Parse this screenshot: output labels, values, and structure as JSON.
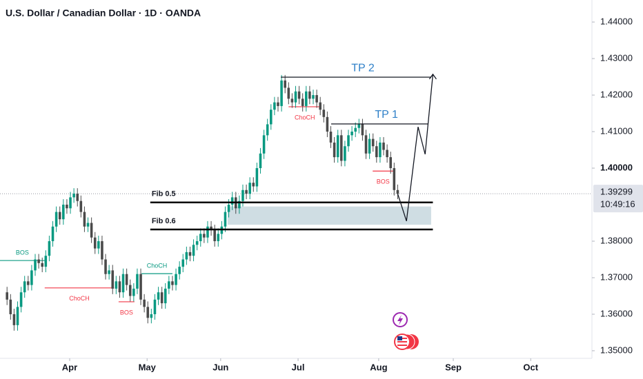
{
  "chart_data": {
    "type": "candlestick",
    "title": "U.S. Dollar / Canadian Dollar · 1D · OANDA",
    "up_color": "#089981",
    "down_color": "#4a4a4a",
    "xlim": [
      -2,
      166.2
    ],
    "ylim": [
      1.34792,
      1.44604
    ],
    "xticks": [
      {
        "value": 17.8,
        "label": "Apr"
      },
      {
        "value": 39.8,
        "label": "May"
      },
      {
        "value": 60.7,
        "label": "Jun"
      },
      {
        "value": 82.7,
        "label": "Jul"
      },
      {
        "value": 105.6,
        "label": "Aug"
      },
      {
        "value": 126.8,
        "label": "Sep"
      },
      {
        "value": 148.8,
        "label": "Oct"
      }
    ],
    "yticks": [
      {
        "value": 1.35,
        "label": "1.35000"
      },
      {
        "value": 1.36,
        "label": "1.36000"
      },
      {
        "value": 1.37,
        "label": "1.37000"
      },
      {
        "value": 1.38,
        "label": "1.38000"
      },
      {
        "value": 1.4,
        "label": "1.40000"
      },
      {
        "value": 1.41,
        "label": "1.41000"
      },
      {
        "value": 1.42,
        "label": "1.42000"
      },
      {
        "value": 1.43,
        "label": "1.43000"
      },
      {
        "value": 1.44,
        "label": "1.44000"
      }
    ],
    "last_price": 1.39299,
    "countdown": "10:49:16",
    "candles": [
      [
        1.366,
        1.3675,
        1.3625,
        1.364
      ],
      [
        1.364,
        1.3655,
        1.3585,
        1.36
      ],
      [
        1.36,
        1.3615,
        1.3555,
        1.357
      ],
      [
        1.357,
        1.3635,
        1.3555,
        1.362
      ],
      [
        1.362,
        1.3675,
        1.3605,
        1.366
      ],
      [
        1.366,
        1.3705,
        1.3645,
        1.369
      ],
      [
        1.369,
        1.3705,
        1.3665,
        1.368
      ],
      [
        1.368,
        1.3735,
        1.3665,
        1.372
      ],
      [
        1.372,
        1.3765,
        1.3705,
        1.375
      ],
      [
        1.375,
        1.3765,
        1.3725,
        1.374
      ],
      [
        1.374,
        1.3755,
        1.3715,
        1.373
      ],
      [
        1.373,
        1.3775,
        1.3715,
        1.376
      ],
      [
        1.376,
        1.3815,
        1.3745,
        1.38
      ],
      [
        1.38,
        1.3855,
        1.3785,
        1.384
      ],
      [
        1.384,
        1.3895,
        1.3825,
        1.388
      ],
      [
        1.388,
        1.3895,
        1.3845,
        1.386
      ],
      [
        1.386,
        1.3915,
        1.3845,
        1.39
      ],
      [
        1.39,
        1.3915,
        1.3875,
        1.389
      ],
      [
        1.389,
        1.3935,
        1.3875,
        1.392
      ],
      [
        1.392,
        1.3945,
        1.3905,
        1.393
      ],
      [
        1.393,
        1.3945,
        1.3895,
        1.391
      ],
      [
        1.391,
        1.3925,
        1.3865,
        1.388
      ],
      [
        1.388,
        1.3895,
        1.3825,
        1.384
      ],
      [
        1.384,
        1.3865,
        1.3825,
        1.385
      ],
      [
        1.385,
        1.3865,
        1.3795,
        1.381
      ],
      [
        1.381,
        1.3825,
        1.3765,
        1.378
      ],
      [
        1.378,
        1.3815,
        1.3765,
        1.38
      ],
      [
        1.38,
        1.3815,
        1.3735,
        1.375
      ],
      [
        1.375,
        1.3765,
        1.3695,
        1.371
      ],
      [
        1.371,
        1.3735,
        1.3695,
        1.372
      ],
      [
        1.372,
        1.3735,
        1.3655,
        1.367
      ],
      [
        1.367,
        1.3705,
        1.3655,
        1.369
      ],
      [
        1.369,
        1.3705,
        1.3645,
        1.366
      ],
      [
        1.366,
        1.3725,
        1.3645,
        1.371
      ],
      [
        1.371,
        1.3725,
        1.3665,
        1.368
      ],
      [
        1.368,
        1.3695,
        1.3635,
        1.365
      ],
      [
        1.365,
        1.3685,
        1.3635,
        1.367
      ],
      [
        1.367,
        1.3725,
        1.3655,
        1.371
      ],
      [
        1.371,
        1.3725,
        1.3625,
        1.364
      ],
      [
        1.364,
        1.3655,
        1.3605,
        1.362
      ],
      [
        1.362,
        1.3635,
        1.3575,
        1.359
      ],
      [
        1.359,
        1.3615,
        1.3575,
        1.36
      ],
      [
        1.36,
        1.3655,
        1.3585,
        1.364
      ],
      [
        1.364,
        1.3675,
        1.3625,
        1.366
      ],
      [
        1.366,
        1.3675,
        1.3615,
        1.363
      ],
      [
        1.363,
        1.3685,
        1.3615,
        1.367
      ],
      [
        1.367,
        1.3705,
        1.3655,
        1.369
      ],
      [
        1.369,
        1.3705,
        1.3665,
        1.368
      ],
      [
        1.368,
        1.3725,
        1.3665,
        1.371
      ],
      [
        1.371,
        1.3745,
        1.3695,
        1.373
      ],
      [
        1.373,
        1.3765,
        1.3715,
        1.375
      ],
      [
        1.375,
        1.3785,
        1.3735,
        1.377
      ],
      [
        1.377,
        1.3785,
        1.3745,
        1.376
      ],
      [
        1.376,
        1.3805,
        1.3745,
        1.379
      ],
      [
        1.379,
        1.3815,
        1.3775,
        1.38
      ],
      [
        1.38,
        1.3835,
        1.3785,
        1.382
      ],
      [
        1.382,
        1.3835,
        1.3795,
        1.381
      ],
      [
        1.381,
        1.3855,
        1.3795,
        1.384
      ],
      [
        1.384,
        1.3855,
        1.3815,
        1.383
      ],
      [
        1.383,
        1.3845,
        1.3785,
        1.38
      ],
      [
        1.38,
        1.3835,
        1.3785,
        1.382
      ],
      [
        1.382,
        1.3855,
        1.3805,
        1.384
      ],
      [
        1.384,
        1.3895,
        1.3825,
        1.388
      ],
      [
        1.388,
        1.3915,
        1.3865,
        1.39
      ],
      [
        1.39,
        1.3935,
        1.3885,
        1.392
      ],
      [
        1.392,
        1.3935,
        1.3875,
        1.389
      ],
      [
        1.389,
        1.3925,
        1.3875,
        1.391
      ],
      [
        1.391,
        1.3955,
        1.3895,
        1.394
      ],
      [
        1.394,
        1.3955,
        1.3915,
        1.393
      ],
      [
        1.393,
        1.3975,
        1.3915,
        1.396
      ],
      [
        1.396,
        1.3975,
        1.3935,
        1.395
      ],
      [
        1.395,
        1.4015,
        1.3935,
        1.4
      ],
      [
        1.4,
        1.4055,
        1.3985,
        1.404
      ],
      [
        1.404,
        1.4105,
        1.4025,
        1.409
      ],
      [
        1.409,
        1.4135,
        1.4075,
        1.412
      ],
      [
        1.412,
        1.4175,
        1.4105,
        1.416
      ],
      [
        1.416,
        1.4195,
        1.4145,
        1.418
      ],
      [
        1.418,
        1.4195,
        1.4155,
        1.417
      ],
      [
        1.417,
        1.4255,
        1.4155,
        1.424
      ],
      [
        1.424,
        1.4255,
        1.4205,
        1.422
      ],
      [
        1.422,
        1.4235,
        1.4175,
        1.419
      ],
      [
        1.419,
        1.4205,
        1.4165,
        1.418
      ],
      [
        1.418,
        1.4225,
        1.4165,
        1.421
      ],
      [
        1.421,
        1.4225,
        1.4175,
        1.419
      ],
      [
        1.419,
        1.4205,
        1.4155,
        1.417
      ],
      [
        1.417,
        1.4225,
        1.4155,
        1.421
      ],
      [
        1.421,
        1.4225,
        1.4175,
        1.419
      ],
      [
        1.419,
        1.4215,
        1.4175,
        1.42
      ],
      [
        1.42,
        1.4215,
        1.4165,
        1.418
      ],
      [
        1.418,
        1.4195,
        1.4145,
        1.416
      ],
      [
        1.416,
        1.4175,
        1.4125,
        1.414
      ],
      [
        1.414,
        1.4155,
        1.4085,
        1.41
      ],
      [
        1.41,
        1.4115,
        1.4055,
        1.407
      ],
      [
        1.407,
        1.4085,
        1.4015,
        1.403
      ],
      [
        1.403,
        1.4105,
        1.4015,
        1.409
      ],
      [
        1.409,
        1.4105,
        1.4005,
        1.402
      ],
      [
        1.402,
        1.4075,
        1.4005,
        1.406
      ],
      [
        1.406,
        1.4105,
        1.4045,
        1.409
      ],
      [
        1.409,
        1.4115,
        1.4075,
        1.41
      ],
      [
        1.41,
        1.4125,
        1.4085,
        1.411
      ],
      [
        1.411,
        1.4135,
        1.4095,
        1.412
      ],
      [
        1.412,
        1.4135,
        1.4075,
        1.409
      ],
      [
        1.409,
        1.4105,
        1.4025,
        1.404
      ],
      [
        1.404,
        1.4095,
        1.4025,
        1.408
      ],
      [
        1.408,
        1.4095,
        1.4045,
        1.406
      ],
      [
        1.406,
        1.4075,
        1.4015,
        1.403
      ],
      [
        1.403,
        1.4085,
        1.4015,
        1.407
      ],
      [
        1.407,
        1.4085,
        1.4035,
        1.405
      ],
      [
        1.405,
        1.4065,
        1.4015,
        1.403
      ],
      [
        1.403,
        1.4045,
        1.3985,
        1.4
      ],
      [
        1.4,
        1.4015,
        1.3925,
        1.394
      ],
      [
        1.394,
        1.3955,
        1.3915,
        1.39299
      ]
    ],
    "structure": [
      {
        "label": "BOS",
        "value": 1.3747,
        "x": [
          -2,
          10.7
        ],
        "color": "#089981",
        "side": "above"
      },
      {
        "label": "ChoCH",
        "value": 1.3672,
        "x": [
          10.7,
          30.4
        ],
        "color": "#f23645",
        "side": "below"
      },
      {
        "label": "BOS",
        "value": 1.3634,
        "x": [
          31.7,
          36.2
        ],
        "color": "#f23645",
        "side": "below"
      },
      {
        "label": "ChoCH",
        "value": 1.3711,
        "x": [
          38.2,
          47
        ],
        "color": "#089981",
        "side": "above"
      },
      {
        "label": "ChoCH",
        "value": 1.4168,
        "x": [
          80,
          89.2
        ],
        "color": "#f23645",
        "side": "below"
      },
      {
        "label": "BOS",
        "value": 1.3992,
        "x": [
          103.9,
          109.8
        ],
        "color": "#f23645",
        "side": "below"
      }
    ],
    "levels": [
      {
        "label": "TP 2",
        "value": 1.4249,
        "x": [
          77.8,
          120.5
        ]
      },
      {
        "label": "TP 1",
        "value": 1.4121,
        "x": [
          92.1,
          119.6
        ]
      }
    ],
    "fib": [
      {
        "label": "Fib 0.5",
        "value": 1.3906,
        "x": [
          40.7,
          121
        ]
      },
      {
        "label": "Fib 0.6",
        "value": 1.3832,
        "x": [
          40.7,
          121
        ]
      }
    ],
    "zone": {
      "from": 1.3845,
      "to": 1.3895,
      "x": [
        62.7,
        120.5
      ]
    },
    "projection": [
      [
        111,
        1.393
      ],
      [
        113.5,
        1.3855
      ],
      [
        116.8,
        1.4113
      ],
      [
        118.8,
        1.4038
      ],
      [
        121,
        1.4257
      ]
    ]
  }
}
